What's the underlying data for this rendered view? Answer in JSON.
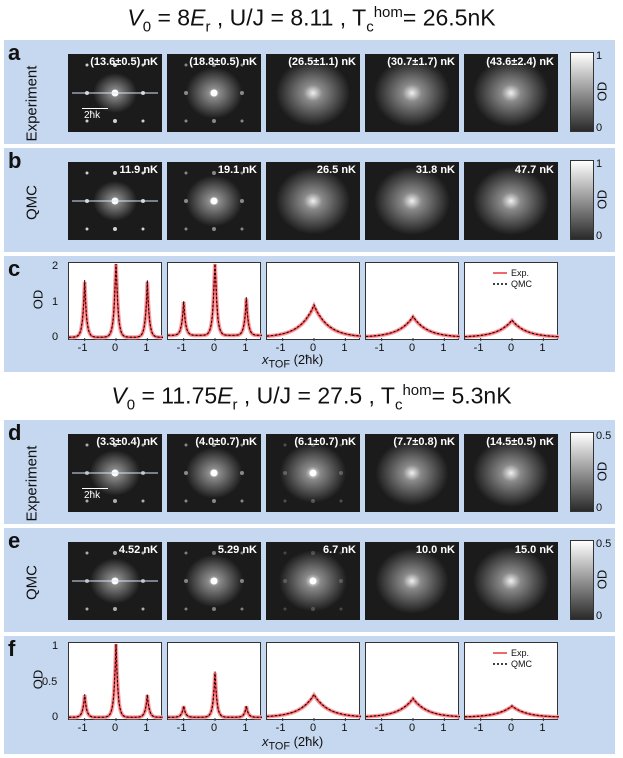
{
  "section1": {
    "title_v0": "V",
    "title_v0_sub": "0",
    "title_v0_val": " = 8",
    "title_er": "E",
    "title_er_sub": "r",
    "title_uj": " ,  U/J = 8.11 ,  T",
    "title_tc_sub": "c",
    "title_tc_sup": "hom",
    "title_tc_val": "= 26.5nK",
    "panel_a": "a",
    "panel_b": "b",
    "panel_c": "c",
    "row_a_label": "Experiment",
    "row_b_label": "QMC",
    "temps_a": [
      "(13.6±0.5) nK",
      "(18.8±0.5) nK",
      "(26.5±1.1) nK",
      "(30.7±1.7) nK",
      "(43.6±2.4) nK"
    ],
    "temps_b": [
      "11.9 nK",
      "19.1 nK",
      "26.5 nK",
      "31.8 nK",
      "47.7 nK"
    ],
    "scalebar": "2ħk",
    "cbar_max": "1",
    "cbar_min": "0",
    "cbar_label": "OD",
    "profile_ylabel": "OD",
    "profile_yticks": [
      "2",
      "1",
      "0"
    ],
    "xticks": [
      "-1",
      "0",
      "1"
    ],
    "xlabel": "x",
    "xlabel_sub": "TOF",
    "xlabel_unit": " (2ħk)",
    "legend_exp": "Exp.",
    "legend_qmc": "QMC"
  },
  "section2": {
    "title_v0": "V",
    "title_v0_sub": "0",
    "title_v0_val": " = 11.75",
    "title_er": "E",
    "title_er_sub": "r",
    "title_uj": " ,  U/J = 27.5 ,  T",
    "title_tc_sub": "c",
    "title_tc_sup": "hom",
    "title_tc_val": "= 5.3nK",
    "panel_d": "d",
    "panel_e": "e",
    "panel_f": "f",
    "row_d_label": "Experiment",
    "row_e_label": "QMC",
    "temps_d": [
      "(3.3±0.4) nK",
      "(4.0±0.7) nK",
      "(6.1±0.7) nK",
      "(7.7±0.8) nK",
      "(14.5±0.5) nK"
    ],
    "temps_e": [
      "4.52 nK",
      "5.29 nK",
      "6.7 nK",
      "10.0 nK",
      "15.0 nK"
    ],
    "scalebar": "2ħk",
    "cbar_max": "0.5",
    "cbar_min": "0",
    "cbar_label": "OD",
    "profile_ylabel": "OD",
    "profile_yticks": [
      "1",
      "0.5",
      "0"
    ],
    "xticks": [
      "-1",
      "0",
      "1"
    ],
    "xlabel": "x",
    "xlabel_sub": "TOF",
    "xlabel_unit": " (2ħk)",
    "legend_exp": "Exp.",
    "legend_qmc": "QMC"
  },
  "colors": {
    "band": "#c6d8ef",
    "exp_line": "#e8353a",
    "exp_band": "#f6a3a6",
    "qmc_line": "#000000"
  },
  "chart_data": [
    {
      "type": "line",
      "xlabel": "x_TOF (2ħk)",
      "ylabel": "OD",
      "xlim": [
        -1.5,
        1.5
      ],
      "ylim": [
        0,
        2
      ],
      "panels": [
        {
          "peaks": [
            [
              -1,
              1.5
            ],
            [
              0,
              2.2
            ],
            [
              1,
              1.5
            ]
          ],
          "bg": 0.1
        },
        {
          "peaks": [
            [
              -1,
              0.9
            ],
            [
              0,
              2.2
            ],
            [
              1,
              1.0
            ]
          ],
          "bg": 0.15
        },
        {
          "peaks": [
            [
              0,
              0.85
            ]
          ],
          "bg": 0.1
        },
        {
          "peaks": [
            [
              0,
              0.55
            ]
          ],
          "bg": 0.1
        },
        {
          "peaks": [
            [
              0,
              0.45
            ]
          ],
          "bg": 0.1
        }
      ]
    },
    {
      "type": "line",
      "xlabel": "x_TOF (2ħk)",
      "ylabel": "OD",
      "xlim": [
        -1.5,
        1.5
      ],
      "ylim": [
        0,
        1
      ],
      "panels": [
        {
          "peaks": [
            [
              -1,
              0.3
            ],
            [
              0,
              1.0
            ],
            [
              1,
              0.3
            ]
          ],
          "bg": 0.05
        },
        {
          "peaks": [
            [
              -1,
              0.15
            ],
            [
              0,
              0.6
            ],
            [
              1,
              0.15
            ]
          ],
          "bg": 0.05
        },
        {
          "peaks": [
            [
              0,
              0.3
            ]
          ],
          "bg": 0.05
        },
        {
          "peaks": [
            [
              0,
              0.25
            ]
          ],
          "bg": 0.05
        },
        {
          "peaks": [
            [
              0,
              0.15
            ]
          ],
          "bg": 0.05
        }
      ]
    }
  ]
}
